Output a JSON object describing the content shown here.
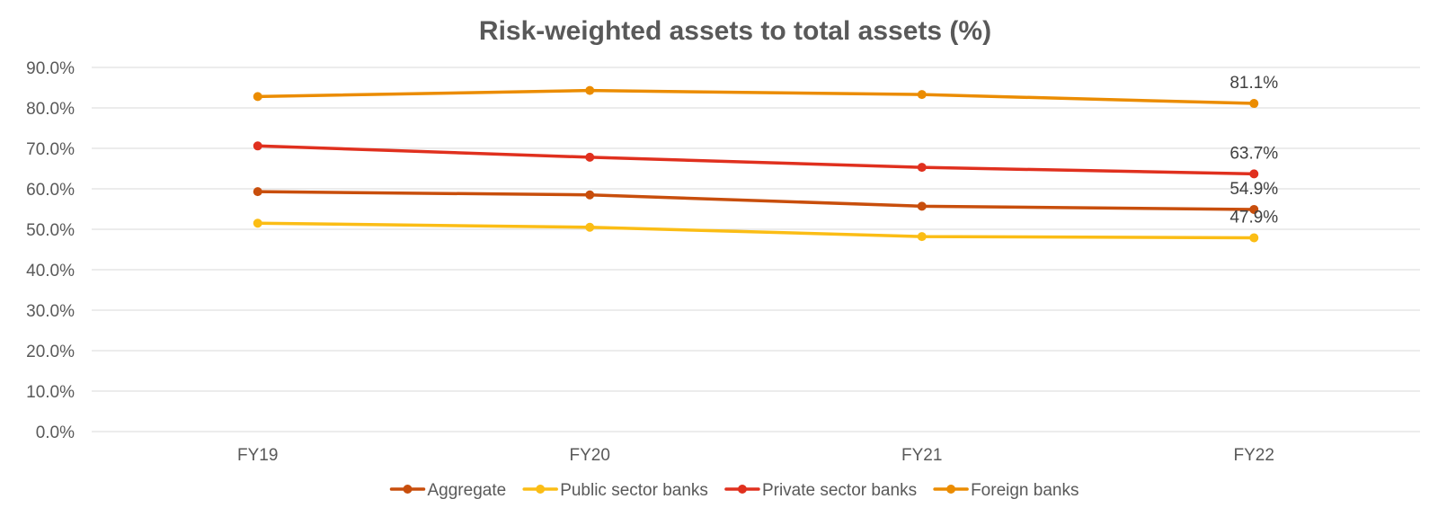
{
  "chart_data": {
    "type": "line",
    "title": "Risk-weighted assets to total assets (%)",
    "categories": [
      "FY19",
      "FY20",
      "FY21",
      "FY22"
    ],
    "ylim": [
      0,
      90
    ],
    "yticks": [
      0,
      10,
      20,
      30,
      40,
      50,
      60,
      70,
      80,
      90
    ],
    "ytick_labels": [
      "0.0%",
      "10.0%",
      "20.0%",
      "30.0%",
      "40.0%",
      "50.0%",
      "60.0%",
      "70.0%",
      "80.0%",
      "90.0%"
    ],
    "grid": true,
    "legend_position": "bottom",
    "series": [
      {
        "name": "Aggregate",
        "color": "#c84e0c",
        "values": [
          59.3,
          58.5,
          55.7,
          54.9
        ],
        "end_label": "54.9%"
      },
      {
        "name": "Public sector banks",
        "color": "#fbbd15",
        "values": [
          51.5,
          50.5,
          48.2,
          47.9
        ],
        "end_label": "47.9%"
      },
      {
        "name": "Private sector banks",
        "color": "#e0301e",
        "values": [
          70.6,
          67.8,
          65.3,
          63.7
        ],
        "end_label": "63.7%"
      },
      {
        "name": "Foreign banks",
        "color": "#eb8c00",
        "values": [
          82.8,
          84.3,
          83.3,
          81.1
        ],
        "end_label": "81.1%"
      }
    ]
  }
}
